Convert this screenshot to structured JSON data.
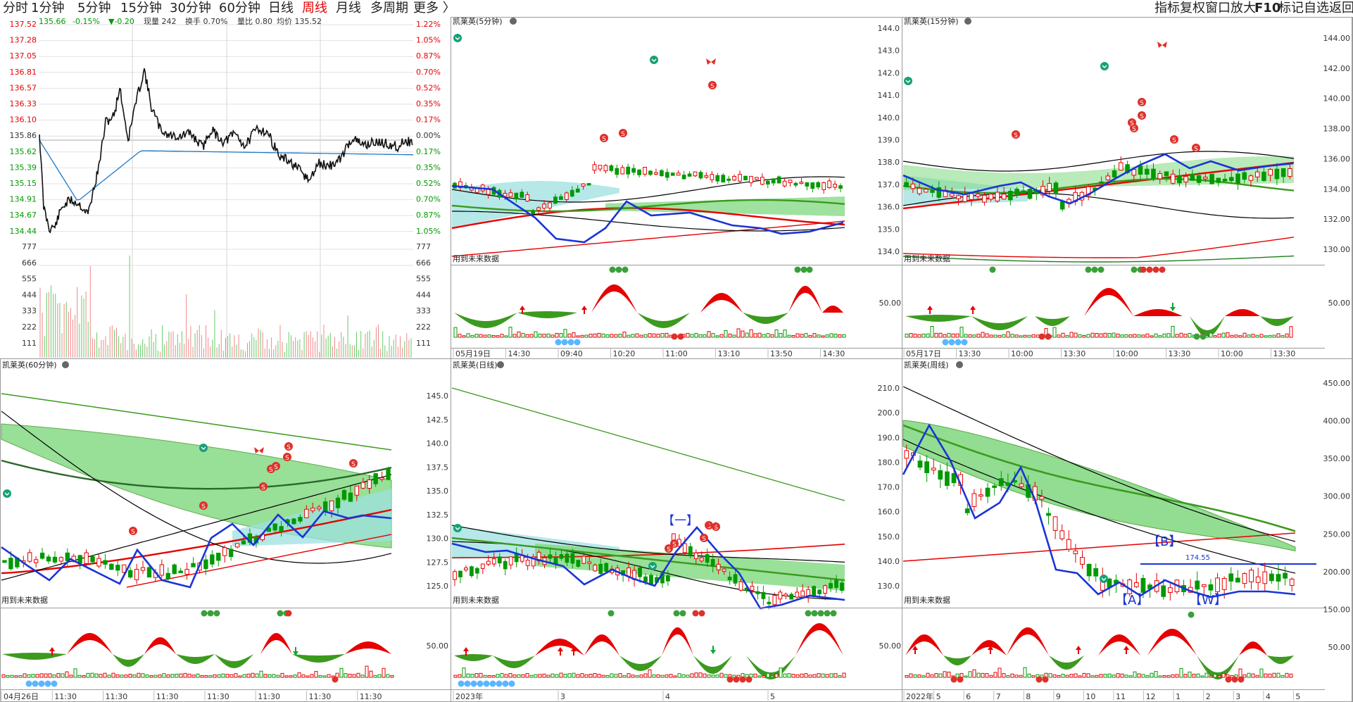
{
  "toolbar": {
    "periods": [
      "分时",
      "1分钟",
      "5分钟",
      "15分钟",
      "30分钟",
      "60分钟",
      "日线",
      "周线",
      "月线",
      "多周期",
      "更多 〉"
    ],
    "active_period": "周线",
    "right_tools": [
      "指标",
      "复权",
      "窗口",
      "放大",
      "F10",
      "标记",
      "自选",
      "返回"
    ]
  },
  "intraday": {
    "header": {
      "price": "135.66",
      "pct": "-0.15%",
      "change": "▼-0.20",
      "vol": "现量 242",
      "turnover": "换手 0.70%",
      "ratio": "量比 0.80",
      "avg": "均价 135.52"
    },
    "price_ticks": [
      "137.52",
      "137.28",
      "137.05",
      "136.81",
      "136.57",
      "136.33",
      "136.10",
      "135.86",
      "135.62",
      "135.39",
      "135.15",
      "134.91",
      "134.67",
      "134.44"
    ],
    "pct_ticks": [
      "1.22%",
      "1.05%",
      "0.87%",
      "0.70%",
      "0.52%",
      "0.35%",
      "0.17%",
      "0.00%",
      "0.17%",
      "0.35%",
      "0.52%",
      "0.70%",
      "0.87%",
      "1.05%"
    ],
    "vol_ticks": [
      "777",
      "666",
      "555",
      "444",
      "333",
      "222",
      "111"
    ],
    "colors": {
      "price": "#000000",
      "avg": "#1f78c8",
      "up_pct": "#e60000",
      "down_pct": "#009900"
    }
  },
  "panels": {
    "m5": {
      "title": "凯莱英(5分钟)",
      "note": "用到未来数据",
      "time_labels": [
        "05月19日",
        "14:30",
        "09:40",
        "10:20",
        "11:00",
        "13:10",
        "13:50",
        "14:30"
      ]
    },
    "m15": {
      "title": "凯莱英(15分钟)",
      "note": "用到未来数据",
      "time_labels": [
        "05月17日",
        "13:30",
        "10:00",
        "13:30",
        "10:00",
        "13:30",
        "10:00",
        "13:30"
      ],
      "price_ticks": [
        "144.0",
        "143.0",
        "142.0",
        "141.0",
        "140.0",
        "139.0",
        "138.0",
        "137.0",
        "136.0",
        "135.0",
        "134.0"
      ],
      "right_ticks": [
        "144.00",
        "142.00",
        "140.00",
        "138.00",
        "136.00",
        "134.00",
        "132.00",
        "130.00"
      ],
      "osc_tick": "50.00"
    },
    "m60": {
      "title": "凯莱英(60分钟)",
      "note": "用到未来数据",
      "time_labels": [
        "04月26日",
        "11:30",
        "11:30",
        "11:30",
        "11:30",
        "11:30",
        "11:30",
        "11:30"
      ]
    },
    "day": {
      "title": "凯莱英(日线)",
      "note": "用到未来数据",
      "price_ticks": [
        "145.0",
        "142.5",
        "140.0",
        "137.5",
        "135.0",
        "132.5",
        "130.0",
        "127.5",
        "125.0"
      ],
      "osc_tick": "50.00",
      "time_labels": [
        "2023年",
        "3",
        "4",
        "5"
      ],
      "annotation": "【一】"
    },
    "week": {
      "title": "凯莱英(周线)",
      "note": "用到未来数据",
      "price_ticks": [
        "210.0",
        "200.0",
        "190.0",
        "180.0",
        "170.0",
        "160.0",
        "150.0",
        "140.0",
        "130.0"
      ],
      "right_ticks": [
        "450.00",
        "400.00",
        "350.00",
        "300.00",
        "250.00",
        "200.00",
        "150.00",
        "50.00"
      ],
      "osc_tick": "50.00",
      "time_labels": [
        "2022年",
        "5",
        "6",
        "7",
        "8",
        "9",
        "10",
        "11",
        "12",
        "1",
        "2",
        "3",
        "4",
        "5"
      ],
      "labels": {
        "b": "【B】",
        "a": "【A】",
        "w": "【W】",
        "price": "174.55"
      }
    }
  },
  "colors": {
    "up": "#e60000",
    "down": "#009900",
    "cloud_green": "#7fd87f",
    "cloud_cyan": "#9ee0e0",
    "trend_blue": "#1a34d6",
    "grid": "#d8d8d8"
  }
}
